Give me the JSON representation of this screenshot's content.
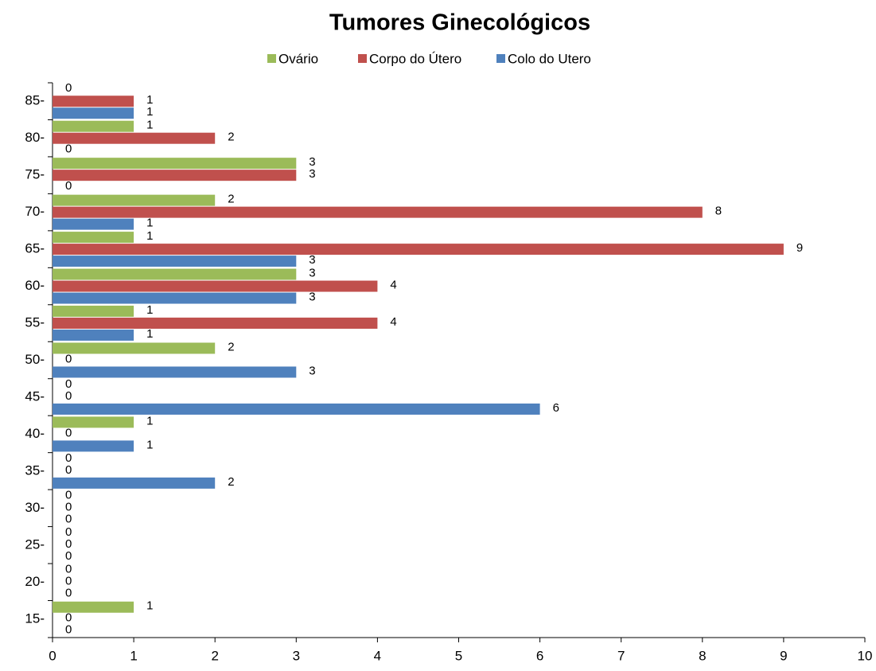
{
  "chart_data": {
    "type": "bar",
    "orientation": "horizontal",
    "title": "Tumores Ginecológicos",
    "categories": [
      "15-",
      "20-",
      "25-",
      "30-",
      "35-",
      "40-",
      "45-",
      "50-",
      "55-",
      "60-",
      "65-",
      "70-",
      "75-",
      "80-",
      "85-"
    ],
    "series": [
      {
        "name": "Ovário",
        "color": "#9bbb59",
        "values": [
          1,
          0,
          0,
          0,
          0,
          1,
          0,
          2,
          1,
          3,
          1,
          2,
          3,
          1,
          0
        ]
      },
      {
        "name": "Corpo do Útero",
        "color": "#c0504d",
        "values": [
          0,
          0,
          0,
          0,
          0,
          0,
          0,
          0,
          4,
          4,
          9,
          8,
          3,
          2,
          1
        ]
      },
      {
        "name": "Colo do Utero",
        "color": "#4f81bd",
        "values": [
          0,
          0,
          0,
          0,
          2,
          1,
          6,
          3,
          1,
          3,
          3,
          1,
          0,
          0,
          1
        ]
      }
    ],
    "xlim": [
      0,
      10
    ],
    "xticks": [
      0,
      1,
      2,
      3,
      4,
      5,
      6,
      7,
      8,
      9,
      10
    ],
    "legend": "top",
    "data_labels": true
  }
}
